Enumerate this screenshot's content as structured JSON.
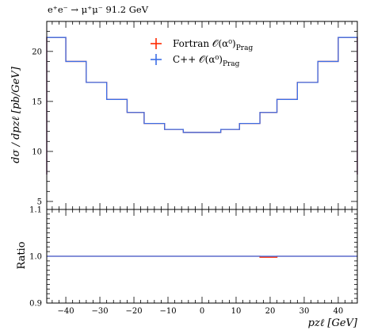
{
  "chart_data": {
    "type": "histogram-with-ratio",
    "title": "e⁺e⁻ → μ⁺μ⁻ 91.2 GeV",
    "ylabel_main": "dσ / dpzℓ [pb/GeV]",
    "ylabel_ratio": "Ratio",
    "xlabel": "pzℓ [GeV]",
    "xlim": [
      -45.6,
      45.6
    ],
    "ylim": [
      4.2,
      23.0
    ],
    "ratio_ylim": [
      0.9,
      1.1
    ],
    "x_ticks": [
      -40,
      -30,
      -20,
      -10,
      0,
      10,
      20,
      30,
      40
    ],
    "y_ticks": [
      5,
      10,
      15,
      20
    ],
    "ratio_ticks": [
      0.9,
      1.0,
      1.1
    ],
    "bin_edges": [
      -45.6,
      -40.0,
      -34.0,
      -28.0,
      -22.0,
      -17.0,
      -11.0,
      -5.5,
      0.0,
      5.5,
      11.0,
      17.0,
      22.0,
      28.0,
      34.0,
      40.0,
      45.6
    ],
    "legend_position": "top-center",
    "series": [
      {
        "name": "Fortran 𝒪(α⁰)",
        "name_sub": "Prag",
        "color": "#ff2a00",
        "values": [
          21.4,
          19.0,
          16.9,
          15.2,
          13.9,
          12.8,
          12.2,
          11.9,
          11.9,
          12.2,
          12.8,
          13.9,
          15.2,
          16.9,
          19.0,
          21.4
        ],
        "ratio": [
          1.0,
          1.0,
          1.0,
          1.0,
          1.0,
          1.0,
          1.0,
          1.0,
          1.0,
          1.0,
          1.0,
          0.998,
          1.0,
          1.0,
          1.0,
          1.0
        ]
      },
      {
        "name": "C++ 𝒪(α⁰)",
        "name_sub": "Prag",
        "color": "#3c6ee6",
        "values": [
          21.4,
          19.0,
          16.9,
          15.2,
          13.9,
          12.8,
          12.2,
          11.9,
          11.9,
          12.2,
          12.8,
          13.9,
          15.2,
          16.9,
          19.0,
          21.4
        ],
        "ratio": [
          1.0,
          1.0,
          1.0,
          1.0,
          1.0,
          1.0,
          1.0,
          1.0,
          1.0,
          1.0,
          1.0,
          1.0,
          1.0,
          1.0,
          1.0,
          1.0
        ]
      }
    ]
  }
}
